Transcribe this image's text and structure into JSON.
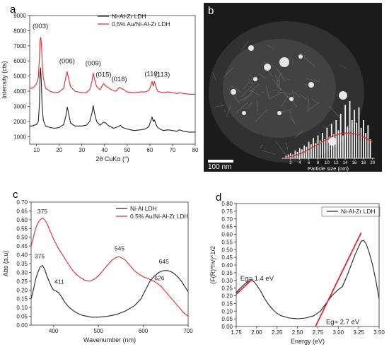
{
  "colors": {
    "black_series": "#222222",
    "red_series": "#e8252b",
    "fit_red": "#e8252b",
    "image_bg": "#1b1b1b"
  },
  "chart_data": [
    {
      "panel": "a",
      "type": "line",
      "xlabel": "2θ CuKα (°)",
      "ylabel": "Intensity (cts)",
      "xlim": [
        7,
        80
      ],
      "ylim": [
        500,
        9000
      ],
      "xticks": [
        10,
        20,
        30,
        40,
        50,
        60,
        70,
        80
      ],
      "yticks": [
        1000,
        2000,
        3000,
        4000,
        5000,
        6000,
        7000,
        8000,
        9000
      ],
      "legend": {
        "placement": "top-right",
        "entries": [
          "Ni-Al-Zr LDH",
          "0.5% Au/Ni-Al-Zr LDH"
        ]
      },
      "peak_labels": [
        {
          "text": "(003)",
          "x": 11.7,
          "y": 8150
        },
        {
          "text": "(006)",
          "x": 23.5,
          "y": 5850
        },
        {
          "text": "(009)",
          "x": 35.0,
          "y": 5700
        },
        {
          "text": "(015)",
          "x": 39.6,
          "y": 4950
        },
        {
          "text": "(018)",
          "x": 46.5,
          "y": 4650
        },
        {
          "text": "(110)",
          "x": 61.0,
          "y": 5000
        },
        {
          "text": "(113)",
          "x": 65.5,
          "y": 4950
        }
      ],
      "series": [
        {
          "name": "Ni-Al-Zr LDH",
          "color": "#222222",
          "x": [
            7,
            8,
            9,
            10,
            10.8,
            11.3,
            11.6,
            11.8,
            12.1,
            12.5,
            13,
            14,
            16,
            18,
            20,
            22,
            23,
            23.6,
            24.2,
            25,
            27,
            30,
            32,
            33.5,
            34.5,
            35,
            35.5,
            36.5,
            38,
            39.5,
            40.5,
            42,
            44,
            46,
            47,
            48,
            50,
            53,
            56,
            58,
            59.5,
            60.3,
            61,
            61.5,
            62,
            62.5,
            63,
            63.5,
            64.5,
            66,
            68,
            70,
            72,
            73,
            75,
            77,
            80
          ],
          "y": [
            1700,
            1700,
            1750,
            1800,
            2000,
            3200,
            5200,
            5550,
            4700,
            3000,
            2100,
            1700,
            1600,
            1550,
            1600,
            1800,
            2400,
            2950,
            2500,
            1900,
            1700,
            1700,
            1750,
            2000,
            2600,
            3050,
            2600,
            2000,
            1750,
            1950,
            1900,
            1700,
            1550,
            1650,
            1750,
            1600,
            1500,
            1400,
            1450,
            1500,
            1650,
            2000,
            2300,
            2000,
            2100,
            1900,
            1700,
            1600,
            1500,
            1400,
            1450,
            1400,
            1350,
            1450,
            1350,
            1300,
            1300
          ]
        },
        {
          "name": "0.5% Au/Ni-Al-Zr LDH",
          "color": "#e8252b",
          "x": [
            7,
            8,
            9,
            10,
            10.8,
            11.3,
            11.6,
            11.9,
            12.2,
            12.6,
            13,
            14,
            16,
            18,
            20,
            22,
            23,
            23.5,
            24.2,
            25,
            27,
            30,
            32,
            33.5,
            34.5,
            35,
            35.6,
            36.5,
            38,
            39.5,
            41,
            43,
            45,
            46.5,
            48,
            50,
            53,
            56,
            58,
            59.5,
            60.3,
            61,
            61.5,
            62,
            62.5,
            63,
            63.5,
            64.5,
            66,
            68,
            70,
            72,
            73,
            75,
            77,
            80
          ],
          "y": [
            4200,
            4200,
            4300,
            4500,
            4900,
            6300,
            7400,
            7550,
            7000,
            5600,
            4900,
            4200,
            4000,
            3900,
            3950,
            4200,
            5000,
            5300,
            4800,
            4300,
            4000,
            3900,
            3900,
            4100,
            4700,
            5200,
            4800,
            4300,
            4100,
            4500,
            4300,
            4100,
            4000,
            4250,
            4150,
            3950,
            3900,
            3950,
            3950,
            4050,
            4300,
            4650,
            4350,
            4650,
            4400,
            4150,
            4000,
            3950,
            3900,
            3950,
            3900,
            3850,
            3900,
            3850,
            3800,
            3800
          ]
        }
      ]
    },
    {
      "panel": "b",
      "type": "bar",
      "xlabel": "Particle size (nm)",
      "xticks": [
        2,
        4,
        6,
        8,
        10,
        12,
        14,
        16,
        18,
        20
      ],
      "scale_bar": "100 nm",
      "bins": [
        1,
        1.5,
        2,
        2.5,
        3,
        3.5,
        4,
        4.5,
        5,
        5.5,
        6,
        6.5,
        7,
        7.5,
        8,
        8.5,
        9,
        9.5,
        10,
        10.5,
        11,
        11.5,
        12,
        12.5,
        13,
        13.5,
        14,
        14.5,
        15,
        15.5,
        16,
        16.5,
        17,
        17.5,
        18,
        18.5,
        19,
        19.5
      ],
      "values": [
        2,
        3,
        4,
        3,
        6,
        5,
        8,
        7,
        10,
        9,
        13,
        11,
        16,
        12,
        18,
        14,
        20,
        15,
        24,
        17,
        27,
        19,
        30,
        22,
        35,
        18,
        42,
        25,
        45,
        30,
        38,
        28,
        40,
        24,
        30,
        20,
        26,
        15
      ],
      "fit_x": [
        1,
        3,
        5,
        7,
        9,
        11,
        13,
        15,
        17,
        19,
        20
      ],
      "fit_y": [
        0.5,
        2,
        5,
        9,
        13,
        17,
        19.5,
        20,
        18.5,
        15,
        13
      ],
      "ylim": [
        0,
        50
      ]
    },
    {
      "panel": "c",
      "type": "line",
      "xlabel": "Wavenumber (nm)",
      "ylabel": "Abs (a.u)",
      "xlim": [
        350,
        700
      ],
      "ylim": [
        0,
        0.7
      ],
      "xticks": [
        400,
        500,
        600,
        700
      ],
      "yticks": [
        0.0,
        0.05,
        0.1,
        0.15,
        0.2,
        0.25,
        0.3,
        0.35,
        0.4,
        0.45,
        0.5,
        0.55,
        0.6,
        0.65,
        0.7
      ],
      "ytick_labels": [
        "0.00",
        "0.05",
        "0.10",
        "0.15",
        "0.20",
        "0.25",
        "0.30",
        "0.35",
        "0.40",
        "0.45",
        "0.50",
        "0.55",
        "0.60",
        "0.65",
        "0.70"
      ],
      "legend": {
        "placement": "top-right",
        "entries": [
          "Ni-Al LDH",
          "0.5% Au/Ni-Al-Zr LDH"
        ]
      },
      "peak_labels": [
        {
          "text": "375",
          "x": 375,
          "y": 0.635
        },
        {
          "text": "375",
          "x": 369,
          "y": 0.38
        },
        {
          "text": "411",
          "x": 413,
          "y": 0.235
        },
        {
          "text": "545",
          "x": 547,
          "y": 0.425
        },
        {
          "text": "645",
          "x": 646,
          "y": 0.35
        },
        {
          "text": "626",
          "x": 636,
          "y": 0.255
        }
      ],
      "series": [
        {
          "name": "Ni-Al LDH",
          "color": "#222222",
          "x": [
            350,
            355,
            360,
            365,
            370,
            375,
            380,
            385,
            390,
            395,
            400,
            405,
            411,
            418,
            425,
            435,
            445,
            455,
            465,
            475,
            485,
            500,
            520,
            540,
            560,
            580,
            595,
            605,
            615,
            625,
            635,
            645,
            655,
            665,
            675,
            685,
            695,
            700
          ],
          "y": [
            0.15,
            0.2,
            0.26,
            0.3,
            0.33,
            0.34,
            0.32,
            0.28,
            0.25,
            0.22,
            0.2,
            0.195,
            0.185,
            0.16,
            0.13,
            0.1,
            0.08,
            0.065,
            0.055,
            0.05,
            0.045,
            0.045,
            0.05,
            0.06,
            0.08,
            0.11,
            0.15,
            0.2,
            0.25,
            0.28,
            0.3,
            0.31,
            0.31,
            0.3,
            0.28,
            0.25,
            0.21,
            0.19
          ]
        },
        {
          "name": "0.5% Au/Ni-Al-Zr LDH",
          "color": "#e8252b",
          "x": [
            350,
            355,
            360,
            365,
            370,
            375,
            380,
            385,
            390,
            395,
            400,
            410,
            420,
            430,
            440,
            450,
            460,
            470,
            480,
            490,
            500,
            510,
            520,
            530,
            540,
            545,
            550,
            560,
            570,
            580,
            590,
            600,
            610,
            620,
            630,
            640,
            650,
            660,
            670,
            680,
            690,
            700
          ],
          "y": [
            0.45,
            0.5,
            0.55,
            0.58,
            0.6,
            0.61,
            0.6,
            0.58,
            0.55,
            0.52,
            0.49,
            0.44,
            0.4,
            0.36,
            0.32,
            0.29,
            0.27,
            0.255,
            0.25,
            0.26,
            0.28,
            0.31,
            0.34,
            0.37,
            0.385,
            0.39,
            0.385,
            0.37,
            0.34,
            0.31,
            0.29,
            0.275,
            0.265,
            0.255,
            0.24,
            0.22,
            0.19,
            0.16,
            0.13,
            0.1,
            0.07,
            0.05
          ]
        }
      ]
    },
    {
      "panel": "d",
      "type": "line",
      "xlabel": "Energy (eV)",
      "ylabel": "(F(R)*hv)^1/2",
      "xlim": [
        1.75,
        3.5
      ],
      "ylim": [
        0.0,
        0.8
      ],
      "xticks": [
        1.75,
        2.0,
        2.25,
        2.5,
        2.75,
        3.0,
        3.25,
        3.5
      ],
      "xtick_labels": [
        "1.75",
        "2.00",
        "2.25",
        "2.50",
        "2.75",
        "3.00",
        "3.25",
        "3.50"
      ],
      "yticks": [
        0.0,
        0.05,
        0.1,
        0.15,
        0.2,
        0.25,
        0.3,
        0.35,
        0.4,
        0.45,
        0.5,
        0.55,
        0.6,
        0.65,
        0.7,
        0.75,
        0.8
      ],
      "ytick_labels": [
        "0.00",
        "0.05",
        "0.10",
        "0.15",
        "0.20",
        "0.25",
        "0.30",
        "0.35",
        "0.40",
        "0.45",
        "0.50",
        "0.55",
        "0.60",
        "0.65",
        "0.70",
        "0.75",
        "0.80"
      ],
      "legend": {
        "placement": "top-right",
        "entries": [
          "Ni-Al-Zr LDH"
        ]
      },
      "annotations": [
        {
          "text": "Eg= 1.4 eV",
          "x": 1.8,
          "y": 0.3
        },
        {
          "text": "Eg= 2.7 eV",
          "x": 2.85,
          "y": 0.015
        }
      ],
      "series": [
        {
          "name": "Ni-Al-Zr LDH",
          "color": "#222222",
          "x": [
            1.75,
            1.8,
            1.85,
            1.9,
            1.93,
            1.96,
            2.0,
            2.05,
            2.1,
            2.15,
            2.2,
            2.25,
            2.3,
            2.4,
            2.5,
            2.6,
            2.7,
            2.78,
            2.85,
            2.92,
            3.0,
            3.05,
            3.1,
            3.15,
            3.2,
            3.25,
            3.28,
            3.31,
            3.34,
            3.38,
            3.42,
            3.46,
            3.5
          ],
          "y": [
            0.22,
            0.25,
            0.275,
            0.295,
            0.3,
            0.295,
            0.27,
            0.23,
            0.18,
            0.14,
            0.11,
            0.085,
            0.07,
            0.055,
            0.05,
            0.055,
            0.07,
            0.1,
            0.15,
            0.2,
            0.24,
            0.26,
            0.32,
            0.39,
            0.46,
            0.52,
            0.555,
            0.56,
            0.54,
            0.48,
            0.4,
            0.3,
            0.18
          ]
        }
      ],
      "fit_lines": [
        {
          "name": "Eg 1.4 eV tangent",
          "color": "#e8252b",
          "x": [
            1.75,
            1.95
          ],
          "y": [
            0.21,
            0.31
          ]
        },
        {
          "name": "Eg 2.7 eV tangent",
          "color": "#e8252b",
          "x": [
            2.72,
            3.28
          ],
          "y": [
            0.0,
            0.61
          ]
        }
      ]
    }
  ],
  "panels": {
    "a": {
      "letter": "a"
    },
    "b": {
      "letter": "b"
    },
    "c": {
      "letter": "c"
    },
    "d": {
      "letter": "d"
    }
  }
}
